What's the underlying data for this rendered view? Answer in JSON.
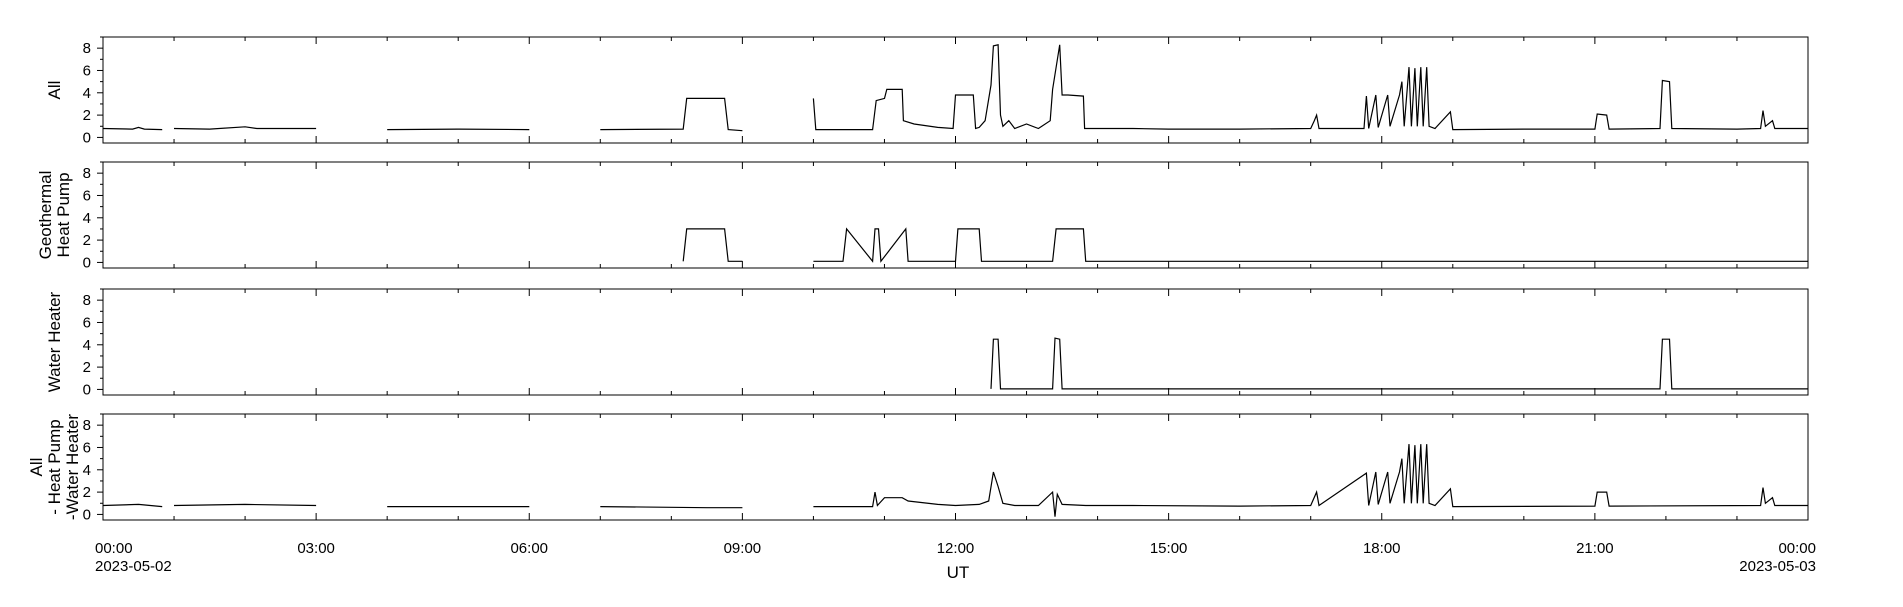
{
  "chart_data": {
    "type": "line",
    "xlabel": "UT",
    "x_range": [
      "2023-05-02T00:00",
      "2023-05-03T00:00"
    ],
    "x_ticks": [
      {
        "time": "2023-05-02T00:00",
        "label": "00:00",
        "date": "2023-05-02"
      },
      {
        "time": "2023-05-02T03:00",
        "label": "03:00"
      },
      {
        "time": "2023-05-02T06:00",
        "label": "06:00"
      },
      {
        "time": "2023-05-02T09:00",
        "label": "09:00"
      },
      {
        "time": "2023-05-02T12:00",
        "label": "12:00"
      },
      {
        "time": "2023-05-02T15:00",
        "label": "15:00"
      },
      {
        "time": "2023-05-02T18:00",
        "label": "18:00"
      },
      {
        "time": "2023-05-02T21:00",
        "label": "21:00"
      },
      {
        "time": "2023-05-03T00:00",
        "label": "00:00",
        "date": "2023-05-03"
      }
    ],
    "line_color": "#000000",
    "panels": [
      {
        "ylabel": [
          "All"
        ],
        "ylim": [
          -0.5,
          9
        ],
        "yticks": [
          0,
          2,
          4,
          6,
          8
        ],
        "gaps": [
          [
            "00:50",
            "01:00"
          ],
          [
            "03:00",
            "04:00"
          ],
          [
            "06:00",
            "07:00"
          ],
          [
            "09:00",
            "10:00"
          ]
        ],
        "points": [
          [
            "00:00",
            0.8
          ],
          [
            "00:25",
            0.75
          ],
          [
            "00:30",
            0.9
          ],
          [
            "00:35",
            0.75
          ],
          [
            "00:50",
            0.7
          ],
          [
            "01:00",
            0.8
          ],
          [
            "01:30",
            0.75
          ],
          [
            "02:00",
            0.95
          ],
          [
            "02:10",
            0.8
          ],
          [
            "03:00",
            0.8
          ],
          [
            "04:00",
            0.7
          ],
          [
            "05:00",
            0.75
          ],
          [
            "06:00",
            0.7
          ],
          [
            "07:00",
            0.7
          ],
          [
            "08:10",
            0.75
          ],
          [
            "08:13",
            3.5
          ],
          [
            "08:45",
            3.5
          ],
          [
            "08:48",
            0.7
          ],
          [
            "09:00",
            0.6
          ],
          [
            "10:00",
            3.5
          ],
          [
            "10:02",
            0.7
          ],
          [
            "10:50",
            0.7
          ],
          [
            "10:53",
            3.3
          ],
          [
            "11:00",
            3.5
          ],
          [
            "11:02",
            4.3
          ],
          [
            "11:15",
            4.3
          ],
          [
            "11:16",
            1.5
          ],
          [
            "11:25",
            1.2
          ],
          [
            "11:45",
            0.9
          ],
          [
            "11:58",
            0.8
          ],
          [
            "12:00",
            3.8
          ],
          [
            "12:15",
            3.8
          ],
          [
            "12:17",
            0.8
          ],
          [
            "12:20",
            0.9
          ],
          [
            "12:25",
            1.5
          ],
          [
            "12:30",
            4.7
          ],
          [
            "12:32",
            8.2
          ],
          [
            "12:36",
            8.3
          ],
          [
            "12:38",
            2.0
          ],
          [
            "12:40",
            1.0
          ],
          [
            "12:45",
            1.5
          ],
          [
            "12:50",
            0.8
          ],
          [
            "13:00",
            1.2
          ],
          [
            "13:10",
            0.8
          ],
          [
            "13:20",
            1.5
          ],
          [
            "13:22",
            4.3
          ],
          [
            "13:28",
            8.3
          ],
          [
            "13:30",
            3.8
          ],
          [
            "13:35",
            3.8
          ],
          [
            "13:48",
            3.7
          ],
          [
            "13:49",
            0.8
          ],
          [
            "14:30",
            0.8
          ],
          [
            "15:00",
            0.75
          ],
          [
            "16:00",
            0.75
          ],
          [
            "17:00",
            0.8
          ],
          [
            "17:03",
            1.5
          ],
          [
            "17:05",
            2.0
          ],
          [
            "17:07",
            0.8
          ],
          [
            "17:45",
            0.8
          ],
          [
            "17:47",
            3.7
          ],
          [
            "17:49",
            0.8
          ],
          [
            "17:55",
            3.8
          ],
          [
            "17:57",
            0.9
          ],
          [
            "18:05",
            3.8
          ],
          [
            "18:07",
            1.0
          ],
          [
            "18:15",
            3.8
          ],
          [
            "18:17",
            5.0
          ],
          [
            "18:19",
            1.0
          ],
          [
            "18:23",
            6.3
          ],
          [
            "18:25",
            1.0
          ],
          [
            "18:28",
            6.2
          ],
          [
            "18:30",
            1.0
          ],
          [
            "18:33",
            6.3
          ],
          [
            "18:35",
            1.0
          ],
          [
            "18:38",
            6.3
          ],
          [
            "18:40",
            1.0
          ],
          [
            "18:45",
            0.8
          ],
          [
            "18:58",
            2.3
          ],
          [
            "19:00",
            0.7
          ],
          [
            "20:00",
            0.75
          ],
          [
            "21:00",
            0.75
          ],
          [
            "21:02",
            2.1
          ],
          [
            "21:10",
            2.0
          ],
          [
            "21:12",
            0.75
          ],
          [
            "21:55",
            0.8
          ],
          [
            "21:57",
            5.1
          ],
          [
            "22:03",
            5.0
          ],
          [
            "22:05",
            0.8
          ],
          [
            "23:00",
            0.75
          ],
          [
            "23:20",
            0.8
          ],
          [
            "23:22",
            2.4
          ],
          [
            "23:24",
            1.0
          ],
          [
            "23:30",
            1.5
          ],
          [
            "23:32",
            0.8
          ],
          [
            "24:00",
            0.8
          ]
        ]
      },
      {
        "ylabel": [
          "Geothermal",
          "Heat Pump"
        ],
        "ylim": [
          -0.5,
          9
        ],
        "yticks": [
          0,
          2,
          4,
          6,
          8
        ],
        "gaps": [
          [
            "00:50",
            "01:00"
          ],
          [
            "03:00",
            "04:00"
          ],
          [
            "06:00",
            "07:00"
          ],
          [
            "09:00",
            "10:00"
          ]
        ],
        "points": [
          [
            "00:00",
            0.1
          ],
          [
            "08:10",
            0.1
          ],
          [
            "08:13",
            3.0
          ],
          [
            "08:45",
            3.0
          ],
          [
            "08:48",
            0.1
          ],
          [
            "09:00",
            0.1
          ],
          [
            "10:00",
            0.1
          ],
          [
            "10:25",
            0.1
          ],
          [
            "10:28",
            3.0
          ],
          [
            "10:55",
            3.0
          ],
          [
            "10:57",
            0.1
          ],
          [
            "10:50",
            0.1
          ],
          [
            "10:52",
            3.0
          ],
          [
            "11:18",
            3.0
          ],
          [
            "11:20",
            0.1
          ],
          [
            "12:00",
            0.1
          ],
          [
            "12:02",
            3.0
          ],
          [
            "12:20",
            3.0
          ],
          [
            "12:22",
            0.1
          ],
          [
            "13:22",
            0.1
          ],
          [
            "13:25",
            3.0
          ],
          [
            "13:48",
            3.0
          ],
          [
            "13:50",
            0.1
          ],
          [
            "24:00",
            0.1
          ]
        ]
      },
      {
        "ylabel": [
          "Water Heater"
        ],
        "ylim": [
          -0.5,
          9
        ],
        "yticks": [
          0,
          2,
          4,
          6,
          8
        ],
        "gaps": [
          [
            "00:50",
            "01:00"
          ],
          [
            "03:00",
            "04:00"
          ],
          [
            "06:00",
            "07:00"
          ],
          [
            "09:00",
            "10:00"
          ]
        ],
        "points": [
          [
            "00:00",
            0.05
          ],
          [
            "12:30",
            0.05
          ],
          [
            "12:32",
            4.5
          ],
          [
            "12:36",
            4.5
          ],
          [
            "12:38",
            0.05
          ],
          [
            "13:22",
            0.05
          ],
          [
            "13:24",
            4.6
          ],
          [
            "13:28",
            4.5
          ],
          [
            "13:30",
            0.05
          ],
          [
            "21:55",
            0.05
          ],
          [
            "21:57",
            4.5
          ],
          [
            "22:03",
            4.5
          ],
          [
            "22:05",
            0.05
          ],
          [
            "24:00",
            0.05
          ]
        ]
      },
      {
        "ylabel": [
          "All",
          "- Heat Pump",
          "-Water Heater"
        ],
        "ylim": [
          -0.5,
          9
        ],
        "yticks": [
          0,
          2,
          4,
          6,
          8
        ],
        "gaps": [
          [
            "00:50",
            "01:00"
          ],
          [
            "03:00",
            "04:00"
          ],
          [
            "06:00",
            "07:00"
          ],
          [
            "09:00",
            "10:00"
          ]
        ],
        "points": [
          [
            "00:00",
            0.8
          ],
          [
            "00:30",
            0.9
          ],
          [
            "00:50",
            0.7
          ],
          [
            "01:00",
            0.8
          ],
          [
            "02:00",
            0.9
          ],
          [
            "03:00",
            0.8
          ],
          [
            "04:00",
            0.7
          ],
          [
            "06:00",
            0.7
          ],
          [
            "07:00",
            0.7
          ],
          [
            "08:30",
            0.6
          ],
          [
            "09:00",
            0.6
          ],
          [
            "10:00",
            0.7
          ],
          [
            "10:50",
            0.7
          ],
          [
            "10:52",
            2.0
          ],
          [
            "10:54",
            0.8
          ],
          [
            "11:00",
            1.5
          ],
          [
            "11:15",
            1.5
          ],
          [
            "11:20",
            1.2
          ],
          [
            "11:45",
            0.9
          ],
          [
            "12:00",
            0.8
          ],
          [
            "12:20",
            0.9
          ],
          [
            "12:28",
            1.2
          ],
          [
            "12:32",
            3.8
          ],
          [
            "12:36",
            2.5
          ],
          [
            "12:40",
            1.0
          ],
          [
            "12:50",
            0.8
          ],
          [
            "13:10",
            0.8
          ],
          [
            "13:22",
            2.0
          ],
          [
            "13:24",
            -0.2
          ],
          [
            "13:26",
            1.8
          ],
          [
            "13:30",
            0.9
          ],
          [
            "13:50",
            0.8
          ],
          [
            "14:30",
            0.8
          ],
          [
            "16:00",
            0.75
          ],
          [
            "17:00",
            0.8
          ],
          [
            "17:05",
            2.0
          ],
          [
            "17:07",
            0.8
          ],
          [
            "17:47",
            3.7
          ],
          [
            "17:49",
            0.8
          ],
          [
            "17:55",
            3.8
          ],
          [
            "17:57",
            0.9
          ],
          [
            "18:05",
            3.8
          ],
          [
            "18:07",
            1.0
          ],
          [
            "18:15",
            3.8
          ],
          [
            "18:17",
            5.0
          ],
          [
            "18:19",
            1.0
          ],
          [
            "18:23",
            6.3
          ],
          [
            "18:25",
            1.0
          ],
          [
            "18:28",
            6.2
          ],
          [
            "18:30",
            1.0
          ],
          [
            "18:33",
            6.3
          ],
          [
            "18:35",
            1.0
          ],
          [
            "18:38",
            6.3
          ],
          [
            "18:40",
            1.0
          ],
          [
            "18:45",
            0.8
          ],
          [
            "18:58",
            2.3
          ],
          [
            "19:00",
            0.7
          ],
          [
            "21:00",
            0.75
          ],
          [
            "21:02",
            2.0
          ],
          [
            "21:10",
            2.0
          ],
          [
            "21:12",
            0.75
          ],
          [
            "23:20",
            0.8
          ],
          [
            "23:22",
            2.4
          ],
          [
            "23:24",
            1.0
          ],
          [
            "23:30",
            1.5
          ],
          [
            "23:32",
            0.8
          ],
          [
            "24:00",
            0.8
          ]
        ]
      }
    ]
  }
}
